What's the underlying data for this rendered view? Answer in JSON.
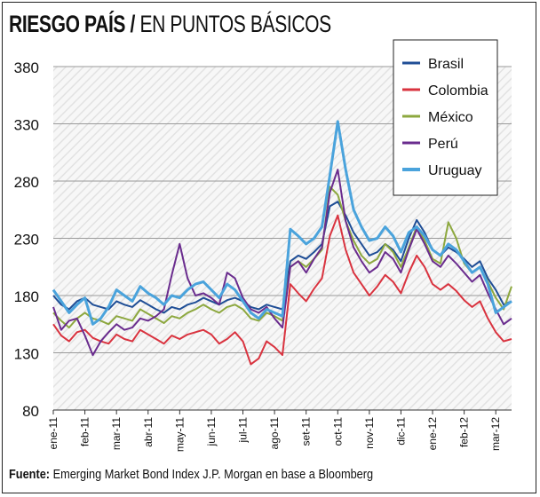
{
  "title": {
    "bold": "RIESGO PAÍS /",
    "light": "EN PUNTOS BÁSICOS"
  },
  "source": {
    "label": "Fuente:",
    "text": "Emerging Market Bond Index J.P. Morgan en base a Bloomberg"
  },
  "chart_data": {
    "type": "line",
    "title": "RIESGO PAÍS / EN PUNTOS BÁSICOS",
    "xlabel": "",
    "ylabel": "",
    "ylim": [
      80,
      380
    ],
    "y_ticks": [
      80,
      130,
      180,
      230,
      280,
      330,
      380
    ],
    "x_ticks": [
      "ene-11",
      "feb-11",
      "mar-11",
      "abr-11",
      "may-11",
      "jun-11",
      "jul-11",
      "ago-11",
      "set-11",
      "oct-11",
      "nov-11",
      "dic-11",
      "ene-12",
      "feb-12",
      "mar-12"
    ],
    "x_unit": "month index (0 = ene-11)",
    "grid": true,
    "legend_position": "top-right",
    "series": [
      {
        "name": "Brasil",
        "color": "#1f4e96",
        "x": [
          0,
          0.25,
          0.5,
          0.75,
          1,
          1.25,
          1.5,
          1.75,
          2,
          2.25,
          2.5,
          2.75,
          3,
          3.25,
          3.5,
          3.75,
          4,
          4.25,
          4.5,
          4.75,
          5,
          5.25,
          5.5,
          5.75,
          6,
          6.25,
          6.5,
          6.75,
          7,
          7.25,
          7.5,
          7.75,
          8,
          8.25,
          8.5,
          8.75,
          9,
          9.25,
          9.5,
          9.75,
          10,
          10.25,
          10.5,
          10.75,
          11,
          11.25,
          11.5,
          11.75,
          12,
          12.25,
          12.5,
          12.75,
          13,
          13.25,
          13.5,
          13.75,
          14,
          14.25,
          14.5
        ],
        "y": [
          180,
          172,
          168,
          175,
          178,
          172,
          170,
          168,
          175,
          172,
          170,
          176,
          172,
          168,
          165,
          170,
          168,
          172,
          174,
          178,
          175,
          172,
          176,
          178,
          175,
          170,
          168,
          172,
          170,
          168,
          210,
          215,
          212,
          218,
          225,
          258,
          262,
          250,
          235,
          225,
          215,
          218,
          225,
          220,
          210,
          230,
          246,
          235,
          220,
          215,
          222,
          218,
          212,
          205,
          210,
          195,
          185,
          172,
          175
        ]
      },
      {
        "name": "Colombia",
        "color": "#d9333f",
        "x": [
          0,
          0.25,
          0.5,
          0.75,
          1,
          1.25,
          1.5,
          1.75,
          2,
          2.25,
          2.5,
          2.75,
          3,
          3.25,
          3.5,
          3.75,
          4,
          4.25,
          4.5,
          4.75,
          5,
          5.25,
          5.5,
          5.75,
          6,
          6.25,
          6.5,
          6.75,
          7,
          7.25,
          7.5,
          7.75,
          8,
          8.25,
          8.5,
          8.75,
          9,
          9.25,
          9.5,
          9.75,
          10,
          10.25,
          10.5,
          10.75,
          11,
          11.25,
          11.5,
          11.75,
          12,
          12.25,
          12.5,
          12.75,
          13,
          13.25,
          13.5,
          13.75,
          14,
          14.25,
          14.5
        ],
        "y": [
          155,
          145,
          140,
          148,
          150,
          143,
          140,
          138,
          146,
          142,
          140,
          150,
          146,
          142,
          138,
          145,
          142,
          146,
          148,
          150,
          146,
          138,
          142,
          148,
          140,
          120,
          125,
          140,
          135,
          128,
          190,
          182,
          175,
          186,
          195,
          232,
          250,
          220,
          200,
          190,
          180,
          188,
          198,
          192,
          182,
          200,
          215,
          205,
          190,
          185,
          190,
          184,
          176,
          170,
          175,
          160,
          148,
          140,
          142
        ]
      },
      {
        "name": "México",
        "color": "#8da83f",
        "x": [
          0,
          0.25,
          0.5,
          0.75,
          1,
          1.25,
          1.5,
          1.75,
          2,
          2.25,
          2.5,
          2.75,
          3,
          3.25,
          3.5,
          3.75,
          4,
          4.25,
          4.5,
          4.75,
          5,
          5.25,
          5.5,
          5.75,
          6,
          6.25,
          6.5,
          6.75,
          7,
          7.25,
          7.5,
          7.75,
          8,
          8.25,
          8.5,
          8.75,
          9,
          9.25,
          9.5,
          9.75,
          10,
          10.25,
          10.5,
          10.75,
          11,
          11.25,
          11.5,
          11.75,
          12,
          12.25,
          12.5,
          12.75,
          13,
          13.25,
          13.5,
          13.75,
          14,
          14.25,
          14.5
        ],
        "y": [
          165,
          158,
          152,
          160,
          165,
          160,
          158,
          155,
          162,
          160,
          158,
          168,
          164,
          160,
          156,
          162,
          160,
          165,
          168,
          172,
          168,
          165,
          170,
          172,
          168,
          160,
          158,
          165,
          162,
          158,
          205,
          210,
          205,
          212,
          220,
          275,
          268,
          245,
          228,
          215,
          208,
          212,
          225,
          218,
          205,
          222,
          240,
          228,
          212,
          208,
          244,
          230,
          208,
          200,
          205,
          192,
          178,
          168,
          188
        ]
      },
      {
        "name": "Perú",
        "color": "#6a2c8e",
        "x": [
          0,
          0.25,
          0.5,
          0.75,
          1,
          1.25,
          1.5,
          1.75,
          2,
          2.25,
          2.5,
          2.75,
          3,
          3.25,
          3.5,
          3.75,
          4,
          4.25,
          4.5,
          4.75,
          5,
          5.25,
          5.5,
          5.75,
          6,
          6.25,
          6.5,
          6.75,
          7,
          7.25,
          7.5,
          7.75,
          8,
          8.25,
          8.5,
          8.75,
          9,
          9.25,
          9.5,
          9.75,
          10,
          10.25,
          10.5,
          10.75,
          11,
          11.25,
          11.5,
          11.75,
          12,
          12.25,
          12.5,
          12.75,
          13,
          13.25,
          13.5,
          13.75,
          14,
          14.25,
          14.5
        ],
        "y": [
          170,
          150,
          158,
          160,
          145,
          128,
          140,
          148,
          155,
          150,
          152,
          160,
          158,
          162,
          168,
          198,
          225,
          195,
          180,
          182,
          178,
          172,
          200,
          195,
          178,
          168,
          165,
          170,
          160,
          152,
          205,
          210,
          200,
          212,
          222,
          270,
          290,
          245,
          222,
          210,
          200,
          205,
          218,
          212,
          200,
          220,
          238,
          225,
          210,
          205,
          215,
          208,
          200,
          192,
          198,
          182,
          168,
          155,
          160
        ]
      },
      {
        "name": "Uruguay",
        "color": "#4aa3dc",
        "x": [
          0,
          0.25,
          0.5,
          0.75,
          1,
          1.25,
          1.5,
          1.75,
          2,
          2.25,
          2.5,
          2.75,
          3,
          3.25,
          3.5,
          3.75,
          4,
          4.25,
          4.5,
          4.75,
          5,
          5.25,
          5.5,
          5.75,
          6,
          6.25,
          6.5,
          6.75,
          7,
          7.25,
          7.5,
          7.75,
          8,
          8.25,
          8.5,
          8.75,
          9,
          9.25,
          9.5,
          9.75,
          10,
          10.25,
          10.5,
          10.75,
          11,
          11.25,
          11.5,
          11.75,
          12,
          12.25,
          12.5,
          12.75,
          13,
          13.25,
          13.5,
          13.75,
          14,
          14.25,
          14.5
        ],
        "y": [
          185,
          175,
          165,
          172,
          178,
          155,
          160,
          170,
          185,
          180,
          175,
          188,
          182,
          178,
          172,
          180,
          178,
          185,
          190,
          192,
          185,
          178,
          190,
          185,
          175,
          165,
          160,
          168,
          165,
          162,
          238,
          232,
          225,
          230,
          240,
          285,
          332,
          290,
          255,
          240,
          228,
          230,
          240,
          232,
          218,
          235,
          240,
          232,
          220,
          215,
          225,
          220,
          210,
          200,
          205,
          190,
          165,
          170,
          175
        ]
      }
    ]
  }
}
